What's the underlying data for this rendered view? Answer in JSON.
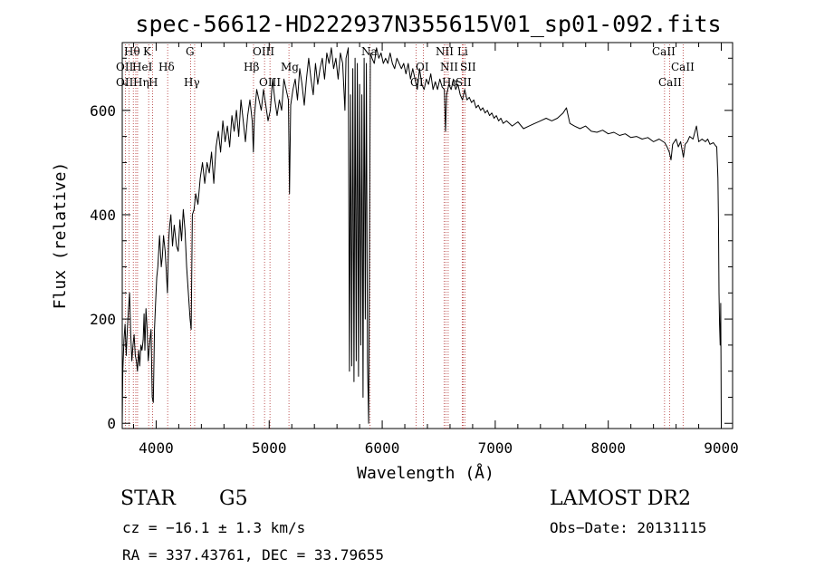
{
  "chart_data": {
    "type": "line",
    "title": "spec-56612-HD222937N355615V01_sp01-092.fits",
    "xlabel": "Wavelength (Å)",
    "ylabel": "Flux (relative)",
    "xlim": [
      3700,
      9100
    ],
    "ylim": [
      -10,
      730
    ],
    "xticks": [
      4000,
      5000,
      6000,
      7000,
      8000,
      9000
    ],
    "yticks": [
      0,
      200,
      400,
      600
    ],
    "grid": false,
    "series": [
      {
        "points": [
          [
            3700,
            0
          ],
          [
            3705,
            100
          ],
          [
            3715,
            160
          ],
          [
            3725,
            190
          ],
          [
            3735,
            130
          ],
          [
            3745,
            180
          ],
          [
            3755,
            220
          ],
          [
            3765,
            250
          ],
          [
            3775,
            170
          ],
          [
            3785,
            120
          ],
          [
            3795,
            150
          ],
          [
            3805,
            170
          ],
          [
            3815,
            130
          ],
          [
            3825,
            120
          ],
          [
            3835,
            100
          ],
          [
            3845,
            140
          ],
          [
            3855,
            110
          ],
          [
            3865,
            150
          ],
          [
            3875,
            140
          ],
          [
            3885,
            160
          ],
          [
            3893,
            210
          ],
          [
            3900,
            140
          ],
          [
            3910,
            220
          ],
          [
            3920,
            180
          ],
          [
            3930,
            120
          ],
          [
            3945,
            160
          ],
          [
            3955,
            180
          ],
          [
            3965,
            50
          ],
          [
            3975,
            40
          ],
          [
            3985,
            180
          ],
          [
            3995,
            230
          ],
          [
            4005,
            280
          ],
          [
            4015,
            300
          ],
          [
            4030,
            360
          ],
          [
            4045,
            300
          ],
          [
            4055,
            320
          ],
          [
            4065,
            360
          ],
          [
            4080,
            330
          ],
          [
            4090,
            290
          ],
          [
            4100,
            250
          ],
          [
            4110,
            350
          ],
          [
            4120,
            380
          ],
          [
            4130,
            400
          ],
          [
            4145,
            340
          ],
          [
            4160,
            380
          ],
          [
            4180,
            340
          ],
          [
            4195,
            330
          ],
          [
            4210,
            390
          ],
          [
            4225,
            350
          ],
          [
            4240,
            410
          ],
          [
            4255,
            370
          ],
          [
            4270,
            300
          ],
          [
            4285,
            250
          ],
          [
            4300,
            200
          ],
          [
            4310,
            180
          ],
          [
            4320,
            400
          ],
          [
            4335,
            410
          ],
          [
            4350,
            440
          ],
          [
            4370,
            420
          ],
          [
            4390,
            470
          ],
          [
            4410,
            500
          ],
          [
            4430,
            460
          ],
          [
            4450,
            500
          ],
          [
            4470,
            480
          ],
          [
            4490,
            520
          ],
          [
            4510,
            460
          ],
          [
            4530,
            530
          ],
          [
            4550,
            560
          ],
          [
            4570,
            520
          ],
          [
            4590,
            580
          ],
          [
            4610,
            540
          ],
          [
            4630,
            570
          ],
          [
            4650,
            530
          ],
          [
            4670,
            590
          ],
          [
            4690,
            560
          ],
          [
            4710,
            600
          ],
          [
            4730,
            550
          ],
          [
            4750,
            620
          ],
          [
            4770,
            580
          ],
          [
            4790,
            540
          ],
          [
            4810,
            590
          ],
          [
            4830,
            620
          ],
          [
            4850,
            580
          ],
          [
            4860,
            520
          ],
          [
            4870,
            590
          ],
          [
            4890,
            640
          ],
          [
            4910,
            620
          ],
          [
            4930,
            600
          ],
          [
            4950,
            640
          ],
          [
            4970,
            610
          ],
          [
            4990,
            580
          ],
          [
            5010,
            600
          ],
          [
            5030,
            660
          ],
          [
            5050,
            620
          ],
          [
            5070,
            590
          ],
          [
            5090,
            620
          ],
          [
            5110,
            600
          ],
          [
            5130,
            660
          ],
          [
            5150,
            640
          ],
          [
            5170,
            620
          ],
          [
            5180,
            440
          ],
          [
            5190,
            610
          ],
          [
            5210,
            640
          ],
          [
            5230,
            660
          ],
          [
            5250,
            620
          ],
          [
            5270,
            680
          ],
          [
            5290,
            650
          ],
          [
            5310,
            610
          ],
          [
            5330,
            660
          ],
          [
            5350,
            700
          ],
          [
            5370,
            660
          ],
          [
            5390,
            630
          ],
          [
            5410,
            690
          ],
          [
            5430,
            650
          ],
          [
            5450,
            680
          ],
          [
            5470,
            700
          ],
          [
            5490,
            660
          ],
          [
            5510,
            710
          ],
          [
            5530,
            690
          ],
          [
            5550,
            720
          ],
          [
            5570,
            680
          ],
          [
            5590,
            700
          ],
          [
            5610,
            660
          ],
          [
            5630,
            710
          ],
          [
            5650,
            690
          ],
          [
            5670,
            600
          ],
          [
            5680,
            700
          ],
          [
            5700,
            720
          ],
          [
            5710,
            100
          ],
          [
            5720,
            630
          ],
          [
            5730,
            110
          ],
          [
            5740,
            680
          ],
          [
            5750,
            80
          ],
          [
            5760,
            700
          ],
          [
            5770,
            120
          ],
          [
            5780,
            690
          ],
          [
            5790,
            90
          ],
          [
            5800,
            650
          ],
          [
            5810,
            150
          ],
          [
            5820,
            630
          ],
          [
            5830,
            50
          ],
          [
            5840,
            700
          ],
          [
            5850,
            200
          ],
          [
            5860,
            690
          ],
          [
            5870,
            120
          ],
          [
            5880,
            0
          ],
          [
            5895,
            710
          ],
          [
            5910,
            700
          ],
          [
            5930,
            690
          ],
          [
            5950,
            720
          ],
          [
            5970,
            700
          ],
          [
            5990,
            710
          ],
          [
            6010,
            690
          ],
          [
            6030,
            700
          ],
          [
            6050,
            690
          ],
          [
            6070,
            710
          ],
          [
            6090,
            690
          ],
          [
            6110,
            680
          ],
          [
            6130,
            700
          ],
          [
            6150,
            690
          ],
          [
            6170,
            680
          ],
          [
            6190,
            690
          ],
          [
            6210,
            670
          ],
          [
            6230,
            690
          ],
          [
            6250,
            660
          ],
          [
            6270,
            680
          ],
          [
            6290,
            660
          ],
          [
            6310,
            640
          ],
          [
            6330,
            680
          ],
          [
            6350,
            650
          ],
          [
            6370,
            640
          ],
          [
            6390,
            660
          ],
          [
            6410,
            650
          ],
          [
            6430,
            670
          ],
          [
            6450,
            640
          ],
          [
            6470,
            655
          ],
          [
            6490,
            640
          ],
          [
            6510,
            660
          ],
          [
            6530,
            645
          ],
          [
            6550,
            640
          ],
          [
            6560,
            560
          ],
          [
            6570,
            630
          ],
          [
            6590,
            650
          ],
          [
            6610,
            640
          ],
          [
            6630,
            660
          ],
          [
            6650,
            640
          ],
          [
            6670,
            650
          ],
          [
            6690,
            630
          ],
          [
            6710,
            620
          ],
          [
            6730,
            640
          ],
          [
            6750,
            620
          ],
          [
            6770,
            625
          ],
          [
            6790,
            615
          ],
          [
            6810,
            620
          ],
          [
            6830,
            605
          ],
          [
            6850,
            610
          ],
          [
            6870,
            600
          ],
          [
            6890,
            605
          ],
          [
            6910,
            595
          ],
          [
            6930,
            600
          ],
          [
            6950,
            590
          ],
          [
            6970,
            595
          ],
          [
            6990,
            585
          ],
          [
            7010,
            590
          ],
          [
            7030,
            580
          ],
          [
            7050,
            585
          ],
          [
            7070,
            575
          ],
          [
            7100,
            580
          ],
          [
            7150,
            570
          ],
          [
            7200,
            578
          ],
          [
            7250,
            565
          ],
          [
            7300,
            570
          ],
          [
            7350,
            575
          ],
          [
            7400,
            580
          ],
          [
            7450,
            585
          ],
          [
            7500,
            580
          ],
          [
            7550,
            585
          ],
          [
            7600,
            595
          ],
          [
            7630,
            605
          ],
          [
            7660,
            575
          ],
          [
            7700,
            570
          ],
          [
            7750,
            565
          ],
          [
            7800,
            570
          ],
          [
            7850,
            560
          ],
          [
            7900,
            558
          ],
          [
            7950,
            562
          ],
          [
            8000,
            555
          ],
          [
            8050,
            558
          ],
          [
            8100,
            552
          ],
          [
            8150,
            555
          ],
          [
            8200,
            548
          ],
          [
            8250,
            550
          ],
          [
            8300,
            545
          ],
          [
            8350,
            548
          ],
          [
            8400,
            540
          ],
          [
            8450,
            545
          ],
          [
            8500,
            538
          ],
          [
            8520,
            530
          ],
          [
            8540,
            520
          ],
          [
            8555,
            505
          ],
          [
            8570,
            535
          ],
          [
            8600,
            545
          ],
          [
            8620,
            530
          ],
          [
            8640,
            540
          ],
          [
            8665,
            510
          ],
          [
            8680,
            535
          ],
          [
            8700,
            540
          ],
          [
            8720,
            550
          ],
          [
            8750,
            545
          ],
          [
            8780,
            570
          ],
          [
            8800,
            540
          ],
          [
            8830,
            545
          ],
          [
            8860,
            540
          ],
          [
            8880,
            545
          ],
          [
            8900,
            535
          ],
          [
            8930,
            538
          ],
          [
            8950,
            532
          ],
          [
            8960,
            530
          ],
          [
            8970,
            470
          ],
          [
            8975,
            390
          ],
          [
            8980,
            250
          ],
          [
            8985,
            190
          ],
          [
            8990,
            150
          ],
          [
            8995,
            230
          ],
          [
            9000,
            0
          ]
        ]
      }
    ],
    "lines": [
      {
        "name": "Hθ",
        "wave": 3797.9
      },
      {
        "name": "OII",
        "wave": 3727.1
      },
      {
        "name": "OIII",
        "wave": 3760.0
      },
      {
        "name": "HeI",
        "wave": 3820.0
      },
      {
        "name": "Hη",
        "wave": 3835.4
      },
      {
        "name": "K",
        "wave": 3933.7
      },
      {
        "name": "H",
        "wave": 3968.5
      },
      {
        "name": "Hδ",
        "wave": 4101.7
      },
      {
        "name": "G",
        "wave": 4304.4
      },
      {
        "name": "Hγ",
        "wave": 4340.5
      },
      {
        "name": "Hβ",
        "wave": 4861.3
      },
      {
        "name": "OIII",
        "wave": 4959.0
      },
      {
        "name": "OIII",
        "wave": 5007.0
      },
      {
        "name": "Mg",
        "wave": 5175.0
      },
      {
        "name": "Na",
        "wave": 5893.0
      },
      {
        "name": "OI",
        "wave": 6300.3
      },
      {
        "name": "OI",
        "wave": 6363.8
      },
      {
        "name": "NII",
        "wave": 6548.0
      },
      {
        "name": "Hα",
        "wave": 6562.8
      },
      {
        "name": "NII",
        "wave": 6583.4
      },
      {
        "name": "Li",
        "wave": 6707.8
      },
      {
        "name": "SII",
        "wave": 6716.0
      },
      {
        "name": "SII",
        "wave": 6731.0
      },
      {
        "name": "CaII",
        "wave": 8498.0
      },
      {
        "name": "CaII",
        "wave": 8542.0
      },
      {
        "name": "CaII",
        "wave": 8662.0
      }
    ]
  },
  "labels": {
    "h_theta": "Hθ",
    "k": "K",
    "oii": "OII",
    "hei": "HeI",
    "oii_b": "OII",
    "h_eta": "Hη",
    "h": "H",
    "h_delta": "Hδ",
    "g": "G",
    "h_gamma": "Hγ",
    "oiii_a": "OIII",
    "h_beta": "Hβ",
    "mg": "Mg",
    "oiii_b": "OIII",
    "na": "Na",
    "nii_a": "NII",
    "li": "Li",
    "oi_a": "OI",
    "nii_b": "NII",
    "sii": "SII",
    "oi_b": "OI",
    "h_alpha": "Hα",
    "sii_b": "SII",
    "caii_a": "CaII",
    "caii_b": "CaII",
    "caii_c": "CaII"
  },
  "footer": {
    "object_class": "STAR",
    "subclass": "G5",
    "survey": "LAMOST DR2",
    "cz": "cz = −16.1 ± 1.3 km/s",
    "obs_date": "Obs−Date: 20131115",
    "radec": "RA = 337.43761, DEC =  33.79655"
  }
}
